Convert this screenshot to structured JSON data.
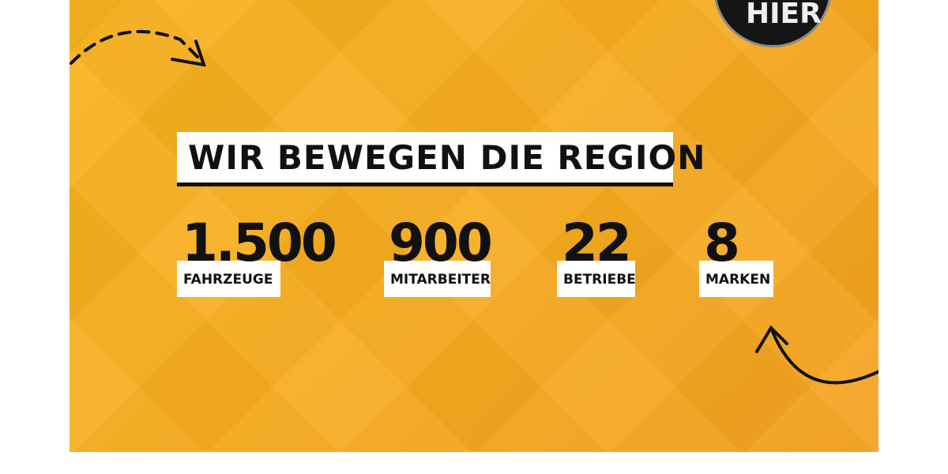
{
  "title": "WIR BEWEGEN DIE REGION",
  "stats": [
    {
      "value": "1.500",
      "label": "FAHRZEUGE"
    },
    {
      "value": "900",
      "label": "MITARBEITER"
    },
    {
      "value": "22",
      "label": "BETRIEBE"
    },
    {
      "value": "8",
      "label": "MARKEN"
    }
  ],
  "badge": {
    "text": "HIER"
  },
  "colors": {
    "background": "#f7ad1f",
    "text": "#111111",
    "box": "#ffffff"
  }
}
